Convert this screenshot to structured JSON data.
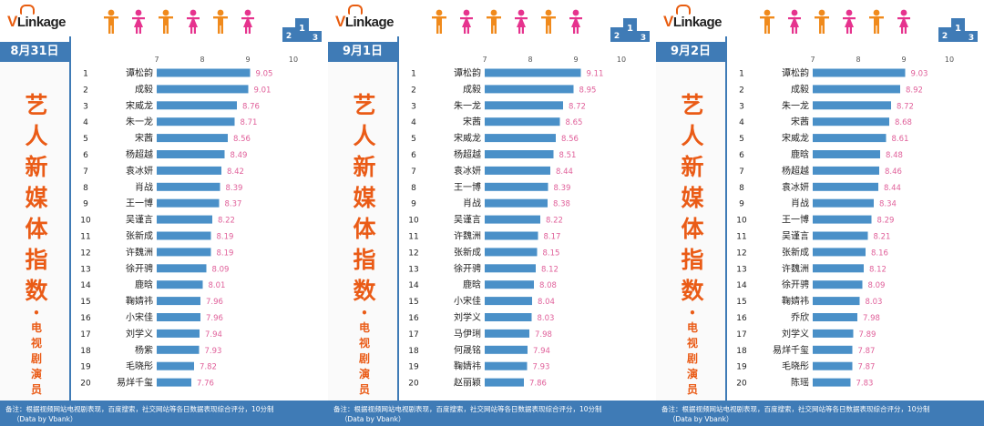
{
  "brand": "VLinkage",
  "side_big": [
    "艺",
    "人",
    "新",
    "媒",
    "体",
    "指",
    "数"
  ],
  "side_dot": "•",
  "side_small": [
    "电",
    "视",
    "剧",
    "演",
    "员"
  ],
  "footer": {
    "note": "备注：根据视频网站电视剧表现，百度搜索，社交网站等各日数据表现综合评分，10分制",
    "source": "（Data by Vbank）"
  },
  "colors": {
    "bar": "#4a90c8",
    "value": "#e0609a",
    "accent": "#ea5b16",
    "header": "#3f7bb6"
  },
  "icons": [
    "vlinkage-logo-icon",
    "male-figure-icon",
    "female-figure-icon",
    "podium-icon"
  ],
  "chart_data": [
    {
      "type": "bar",
      "orientation": "horizontal",
      "date": "8月31日",
      "xticks": [
        "7",
        "8",
        "9",
        "10"
      ],
      "xlim": [
        7,
        10
      ],
      "ranks": [
        "1",
        "2",
        "3",
        "4",
        "5",
        "6",
        "7",
        "8",
        "9",
        "10",
        "11",
        "12",
        "13",
        "14",
        "15",
        "16",
        "17",
        "18",
        "19",
        "20"
      ],
      "categories": [
        "谭松韵",
        "成毅",
        "宋威龙",
        "朱一龙",
        "宋茜",
        "杨超越",
        "袁冰妍",
        "肖战",
        "王一博",
        "吴谨言",
        "张新成",
        "许魏洲",
        "徐开骋",
        "鹿晗",
        "鞠婧祎",
        "小宋佳",
        "刘学义",
        "杨紫",
        "毛晓彤",
        "易烊千玺"
      ],
      "values": [
        9.05,
        9.01,
        8.76,
        8.71,
        8.56,
        8.49,
        8.42,
        8.39,
        8.37,
        8.22,
        8.19,
        8.19,
        8.09,
        8.01,
        7.96,
        7.96,
        7.94,
        7.93,
        7.82,
        7.76
      ],
      "value_labels": [
        "9.05",
        "9.01",
        "8.76",
        "8.71",
        "8.56",
        "8.49",
        "8.42",
        "8.39",
        "8.37",
        "8.22",
        "8.19",
        "8.19",
        "8.09",
        "8.01",
        "7.96",
        "7.96",
        "7.94",
        "7.93",
        "7.82",
        "7.76"
      ]
    },
    {
      "type": "bar",
      "orientation": "horizontal",
      "date": "9月1日",
      "xticks": [
        "7",
        "8",
        "9",
        "10"
      ],
      "xlim": [
        7,
        10
      ],
      "ranks": [
        "1",
        "2",
        "3",
        "4",
        "5",
        "6",
        "7",
        "8",
        "9",
        "10",
        "11",
        "12",
        "13",
        "14",
        "15",
        "16",
        "17",
        "18",
        "19",
        "20"
      ],
      "categories": [
        "谭松韵",
        "成毅",
        "朱一龙",
        "宋茜",
        "宋威龙",
        "杨超越",
        "袁冰妍",
        "王一博",
        "肖战",
        "吴谨言",
        "许魏洲",
        "张新成",
        "徐开骋",
        "鹿晗",
        "小宋佳",
        "刘学义",
        "马伊琍",
        "何晟铭",
        "鞠婧祎",
        "赵丽颖"
      ],
      "values": [
        9.11,
        8.95,
        8.72,
        8.65,
        8.56,
        8.51,
        8.44,
        8.39,
        8.38,
        8.22,
        8.17,
        8.15,
        8.12,
        8.08,
        8.04,
        8.03,
        7.98,
        7.94,
        7.93,
        7.86
      ],
      "value_labels": [
        "9.11",
        "8.95",
        "8.72",
        "8.65",
        "8.56",
        "8.51",
        "8.44",
        "8.39",
        "8.38",
        "8.22",
        "8.17",
        "8.15",
        "8.12",
        "8.08",
        "8.04",
        "8.03",
        "7.98",
        "7.94",
        "7.93",
        "7.86"
      ]
    },
    {
      "type": "bar",
      "orientation": "horizontal",
      "date": "9月2日",
      "xticks": [
        "7",
        "8",
        "9",
        "10"
      ],
      "xlim": [
        7,
        10
      ],
      "ranks": [
        "1",
        "2",
        "3",
        "4",
        "5",
        "6",
        "7",
        "8",
        "9",
        "10",
        "11",
        "12",
        "13",
        "14",
        "15",
        "16",
        "17",
        "18",
        "19",
        "20"
      ],
      "categories": [
        "谭松韵",
        "成毅",
        "朱一龙",
        "宋茜",
        "宋威龙",
        "鹿晗",
        "杨超越",
        "袁冰妍",
        "肖战",
        "王一博",
        "吴谨言",
        "张新成",
        "许魏洲",
        "徐开骋",
        "鞠婧祎",
        "乔欣",
        "刘学义",
        "易烊千玺",
        "毛晓彤",
        "陈瑶"
      ],
      "values": [
        9.03,
        8.92,
        8.72,
        8.68,
        8.61,
        8.48,
        8.46,
        8.44,
        8.34,
        8.29,
        8.21,
        8.16,
        8.12,
        8.09,
        8.03,
        7.98,
        7.89,
        7.87,
        7.87,
        7.83
      ],
      "value_labels": [
        "9.03",
        "8.92",
        "8.72",
        "8.68",
        "8.61",
        "8.48",
        "8.46",
        "8.44",
        "8.34",
        "8.29",
        "8.21",
        "8.16",
        "8.12",
        "8.09",
        "8.03",
        "7.98",
        "7.89",
        "7.87",
        "7.87",
        "7.83"
      ]
    }
  ]
}
